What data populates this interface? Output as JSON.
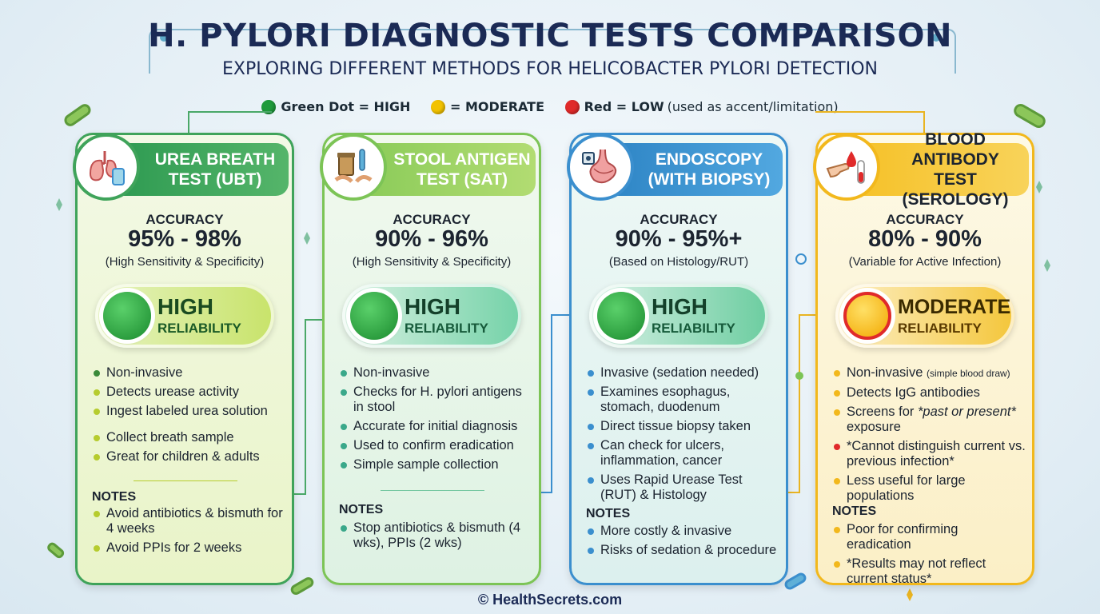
{
  "title": "H. PYLORI DIAGNOSTIC TESTS COMPARISON",
  "subtitle": "EXPLORING DIFFERENT METHODS FOR HELICOBACTER PYLORI DETECTION",
  "legend": {
    "green": "Green Dot = HIGH",
    "yellow": "= MODERATE",
    "red": "Red = LOW",
    "red_note": "(used as accent/limitation)",
    "colors": {
      "green": "#1f9a3b",
      "yellow": "#f2c200",
      "red": "#e02a2a"
    }
  },
  "cards": [
    {
      "title_line1": "UREA BREATH",
      "title_line2": "TEST (UBT)",
      "icon": "lungs-icon",
      "accuracy_label": "ACCURACY",
      "accuracy_value": "95% - 98%",
      "accuracy_note": "(High Sensitivity & Specificity)",
      "reliability": "HIGH",
      "reliability_sub": "RELIABILITY",
      "color": "#3fa35a",
      "bullets": [
        "Non-invasive",
        "Detects urease activity",
        "Ingest labeled urea solution",
        "Collect breath sample",
        "Great for children & adults"
      ],
      "notes_label": "NOTES",
      "notes": [
        "Avoid antibiotics & bismuth for 4 weeks",
        "Avoid PPIs for 2 weeks"
      ]
    },
    {
      "title_line1": "STOOL ANTIGEN",
      "title_line2": "TEST (SAT)",
      "icon": "sample-jar-icon",
      "accuracy_label": "ACCURACY",
      "accuracy_value": "90% - 96%",
      "accuracy_note": "(High Sensitivity & Specificity)",
      "reliability": "HIGH",
      "reliability_sub": "RELIABILITY",
      "color": "#7cc456",
      "bullets": [
        "Non-invasive",
        "Checks for H. pylori antigens in stool",
        "Accurate for initial diagnosis",
        "Used to confirm eradication",
        "Simple sample collection"
      ],
      "notes_label": "NOTES",
      "notes": [
        "Stop antibiotics & bismuth (4 wks), PPIs (2 wks)"
      ]
    },
    {
      "title_line1": "ENDOSCOPY",
      "title_line2": "(WITH BIOPSY)",
      "icon": "stomach-icon",
      "accuracy_label": "ACCURACY",
      "accuracy_value": "90% - 95%+",
      "accuracy_note": "(Based on Histology/RUT)",
      "reliability": "HIGH",
      "reliability_sub": "RELIABILITY",
      "color": "#3b8fce",
      "bullets": [
        "Invasive (sedation needed)",
        "Examines esophagus, stomach, duodenum",
        "Direct tissue biopsy taken",
        "Can check for ulcers, inflammation, cancer",
        "Uses Rapid Urease Test (RUT) & Histology"
      ],
      "notes_label": "NOTES",
      "notes": [
        "More costly & invasive",
        "Risks of sedation & procedure"
      ]
    },
    {
      "title_line1": "BLOOD ANTIBODY",
      "title_line2": "TEST (SEROLOGY)",
      "icon": "blood-drop-icon",
      "accuracy_label": "ACCURACY",
      "accuracy_value": "80% - 90%",
      "accuracy_note": "(Variable for Active Infection)",
      "reliability": "MODERATE",
      "reliability_sub": "RELIABILITY",
      "color": "#f2b81c",
      "bullets_a": [
        "Non-invasive",
        "Detects IgG antibodies"
      ],
      "bullet_small": "(simple blood draw)",
      "bullet_screens_a": "Screens for ",
      "bullet_screens_em": "*past or present*",
      "bullet_screens_b": " exposure",
      "bullet_red": "*Cannot distinguish current vs. previous infection*",
      "bullet_last": "Less useful for large populations",
      "notes_label": "NOTES",
      "notes": [
        "Poor for confirming eradication",
        "*Results may not reflect current status*"
      ]
    }
  ],
  "footer": "© HealthSecrets.com"
}
